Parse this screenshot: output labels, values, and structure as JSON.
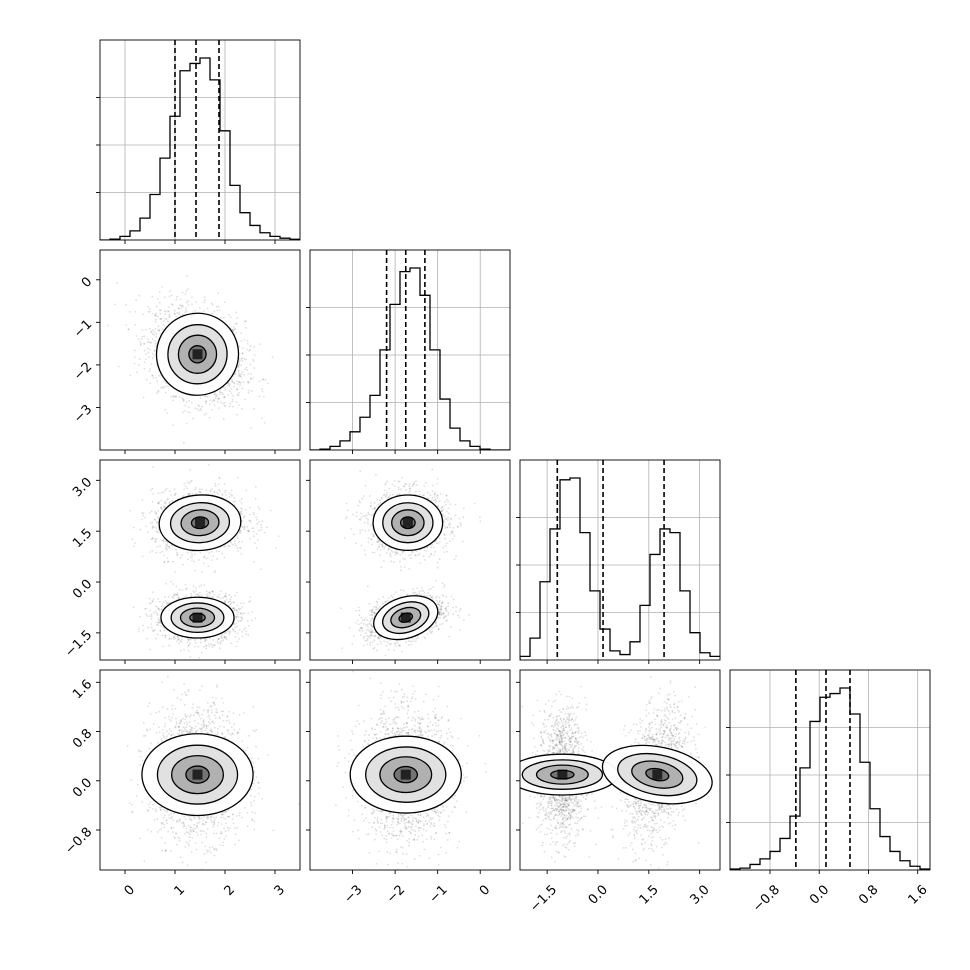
{
  "chart_data": {
    "type": "corner",
    "title": "",
    "grid": true,
    "parameters": [
      {
        "range": [
          -0.5,
          3.5
        ],
        "ticks": [
          0,
          1,
          2,
          3
        ],
        "tick_labels": [
          "0",
          "1",
          "2",
          "3"
        ],
        "quantiles": [
          1.0,
          1.42,
          1.88
        ],
        "hist": [
          0,
          0.005,
          0.02,
          0.05,
          0.12,
          0.25,
          0.45,
          0.68,
          0.93,
          0.97,
          1.0,
          0.88,
          0.6,
          0.3,
          0.15,
          0.08,
          0.04,
          0.02,
          0.01,
          0.004
        ]
      },
      {
        "range": [
          -4.0,
          0.7
        ],
        "ticks": [
          -3,
          -2,
          -1,
          0
        ],
        "tick_labels": [
          "−3",
          "−2",
          "−1",
          "0"
        ],
        "quantiles": [
          -2.2,
          -1.75,
          -1.3
        ],
        "hist": [
          0,
          0.005,
          0.02,
          0.05,
          0.1,
          0.18,
          0.3,
          0.55,
          0.8,
          0.98,
          1.0,
          0.85,
          0.55,
          0.28,
          0.12,
          0.05,
          0.02,
          0.005,
          0,
          0
        ]
      },
      {
        "range": [
          -2.3,
          3.6
        ],
        "ticks": [
          -1.5,
          0.0,
          1.5,
          3.0
        ],
        "tick_labels": [
          "−1.5",
          "0.0",
          "1.5",
          "3.0"
        ],
        "quantiles": [
          -1.2,
          0.15,
          1.95
        ],
        "hist": [
          0.02,
          0.12,
          0.43,
          0.72,
          0.99,
          1.0,
          0.7,
          0.38,
          0.17,
          0.05,
          0.03,
          0.1,
          0.3,
          0.58,
          0.72,
          0.7,
          0.38,
          0.15,
          0.04,
          0.02
        ]
      },
      {
        "range": [
          -1.45,
          1.8
        ],
        "ticks": [
          -0.8,
          0.0,
          0.8,
          1.6
        ],
        "tick_labels": [
          "−0.8",
          "0.0",
          "0.8",
          "1.6"
        ],
        "quantiles": [
          -0.38,
          0.11,
          0.5
        ],
        "hist": [
          0.005,
          0.01,
          0.03,
          0.06,
          0.1,
          0.17,
          0.29,
          0.55,
          0.8,
          0.93,
          0.95,
          0.98,
          0.84,
          0.58,
          0.33,
          0.18,
          0.1,
          0.05,
          0.02,
          0.005
        ]
      }
    ],
    "pairs": [
      {
        "x": 0,
        "y": 1,
        "blobs": [
          {
            "mx": 1.45,
            "my": -1.75,
            "sx": 0.38,
            "sy": 0.45,
            "rho": -0.28
          }
        ]
      },
      {
        "x": 0,
        "y": 2,
        "blobs": [
          {
            "mx": 1.5,
            "my": 1.75,
            "sx": 0.38,
            "sy": 0.38,
            "rho": 0.05
          },
          {
            "mx": 1.45,
            "my": -1.05,
            "sx": 0.34,
            "sy": 0.28,
            "rho": 0.0
          }
        ]
      },
      {
        "x": 1,
        "y": 2,
        "blobs": [
          {
            "mx": -1.7,
            "my": 1.75,
            "sx": 0.38,
            "sy": 0.38,
            "rho": 0.0
          },
          {
            "mx": -1.75,
            "my": -1.05,
            "sx": 0.36,
            "sy": 0.28,
            "rho": 0.35
          }
        ]
      },
      {
        "x": 0,
        "y": 3,
        "blobs": [
          {
            "mx": 1.45,
            "my": 0.1,
            "sx": 0.38,
            "sy": 0.42,
            "rho": 0.0
          }
        ]
      },
      {
        "x": 1,
        "y": 3,
        "blobs": [
          {
            "mx": -1.75,
            "my": 0.1,
            "sx": 0.42,
            "sy": 0.42,
            "rho": 0.0
          }
        ]
      },
      {
        "x": 2,
        "y": 3,
        "blobs": [
          {
            "mx": -1.05,
            "my": 0.1,
            "sx": 0.28,
            "sy": 0.42,
            "rho": 0.0
          },
          {
            "mx": 1.75,
            "my": 0.1,
            "sx": 0.38,
            "sy": 0.42,
            "rho": 0.3
          }
        ]
      }
    ]
  }
}
